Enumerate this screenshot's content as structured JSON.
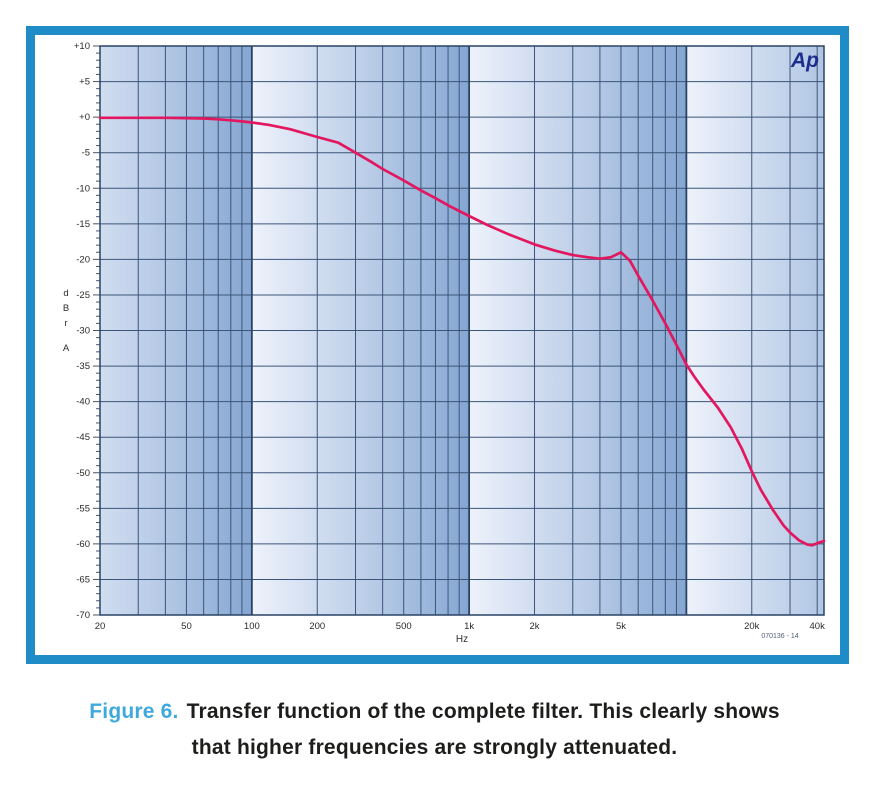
{
  "style": {
    "frame_border": "#1f8cc8",
    "band_light": "#eef2fb",
    "band_mid": "#b9cce7",
    "band_dark": "#84a6d2",
    "grid": "#3b5578",
    "grid_major": "#2a4365",
    "tick_text": "#2b2b2b",
    "watermark_text": "#4c5d78",
    "logo_color": "#1c2d8c",
    "caption_label_color": "#3fa8dc",
    "caption_text_color": "#1d1d1b"
  },
  "chart_data": {
    "type": "line",
    "title": "",
    "xlabel": "Hz",
    "ylabel": "dBr A",
    "ylabel_letters": [
      "d",
      "B",
      "r",
      "A"
    ],
    "logo_text": "Ap",
    "watermark_id": "070136 - 14",
    "x_scale": "log",
    "x_range_hz": [
      20,
      43000
    ],
    "y_range_db": [
      -70,
      10
    ],
    "y_tick_step_db": 5,
    "grid": true,
    "legend": "none",
    "x_tick_labels": [
      {
        "hz": 20,
        "label": "20"
      },
      {
        "hz": 50,
        "label": "50"
      },
      {
        "hz": 100,
        "label": "100"
      },
      {
        "hz": 200,
        "label": "200"
      },
      {
        "hz": 500,
        "label": "500"
      },
      {
        "hz": 1000,
        "label": "1k"
      },
      {
        "hz": 2000,
        "label": "2k"
      },
      {
        "hz": 5000,
        "label": "5k"
      },
      {
        "hz": 20000,
        "label": "20k"
      },
      {
        "hz": 40000,
        "label": "40k"
      }
    ],
    "y_tick_labels": [
      {
        "db": 10,
        "label": "+10"
      },
      {
        "db": 5,
        "label": "+5"
      },
      {
        "db": 0,
        "label": "+0"
      },
      {
        "db": -5,
        "label": "-5"
      },
      {
        "db": -10,
        "label": "-10"
      },
      {
        "db": -15,
        "label": "-15"
      },
      {
        "db": -20,
        "label": "-20"
      },
      {
        "db": -25,
        "label": "-25"
      },
      {
        "db": -30,
        "label": "-30"
      },
      {
        "db": -35,
        "label": "-35"
      },
      {
        "db": -40,
        "label": "-40"
      },
      {
        "db": -45,
        "label": "-45"
      },
      {
        "db": -50,
        "label": "-50"
      },
      {
        "db": -55,
        "label": "-55"
      },
      {
        "db": -60,
        "label": "-60"
      },
      {
        "db": -65,
        "label": "-65"
      },
      {
        "db": -70,
        "label": "-70"
      }
    ],
    "x_gridlines_hz": [
      20,
      30,
      40,
      50,
      60,
      70,
      80,
      90,
      100,
      200,
      300,
      400,
      500,
      600,
      700,
      800,
      900,
      1000,
      2000,
      3000,
      4000,
      5000,
      6000,
      7000,
      8000,
      9000,
      10000,
      20000,
      30000,
      40000
    ],
    "decade_gridlines_hz": [
      100,
      1000,
      10000
    ],
    "series": [
      {
        "name": "transfer-function",
        "color": "#e2175f",
        "points_hz_db": [
          [
            20,
            -0.1
          ],
          [
            30,
            -0.1
          ],
          [
            40,
            -0.1
          ],
          [
            50,
            -0.15
          ],
          [
            60,
            -0.2
          ],
          [
            70,
            -0.3
          ],
          [
            80,
            -0.45
          ],
          [
            90,
            -0.6
          ],
          [
            100,
            -0.75
          ],
          [
            120,
            -1.1
          ],
          [
            150,
            -1.7
          ],
          [
            200,
            -2.8
          ],
          [
            250,
            -3.6
          ],
          [
            300,
            -5.0
          ],
          [
            350,
            -6.2
          ],
          [
            400,
            -7.3
          ],
          [
            500,
            -8.9
          ],
          [
            600,
            -10.3
          ],
          [
            700,
            -11.4
          ],
          [
            800,
            -12.4
          ],
          [
            900,
            -13.2
          ],
          [
            1000,
            -13.9
          ],
          [
            1200,
            -15.1
          ],
          [
            1500,
            -16.4
          ],
          [
            2000,
            -17.9
          ],
          [
            2500,
            -18.8
          ],
          [
            3000,
            -19.4
          ],
          [
            3500,
            -19.7
          ],
          [
            4000,
            -19.9
          ],
          [
            4500,
            -19.7
          ],
          [
            5000,
            -19.0
          ],
          [
            5500,
            -20.2
          ],
          [
            6000,
            -22.3
          ],
          [
            7000,
            -25.8
          ],
          [
            8000,
            -29.0
          ],
          [
            9000,
            -32.0
          ],
          [
            10000,
            -34.8
          ],
          [
            11000,
            -36.7
          ],
          [
            12000,
            -38.3
          ],
          [
            14000,
            -40.9
          ],
          [
            16000,
            -43.6
          ],
          [
            18000,
            -46.6
          ],
          [
            20000,
            -49.8
          ],
          [
            22000,
            -52.4
          ],
          [
            25000,
            -55.2
          ],
          [
            28000,
            -57.4
          ],
          [
            30000,
            -58.4
          ],
          [
            33000,
            -59.5
          ],
          [
            36000,
            -60.1
          ],
          [
            38000,
            -60.2
          ],
          [
            40000,
            -59.9
          ],
          [
            43000,
            -59.6
          ]
        ]
      }
    ]
  },
  "caption": {
    "label": "Figure 6.",
    "line1": "Transfer function of the complete filter. This clearly shows",
    "line2": "that higher frequencies are strongly attenuated."
  }
}
